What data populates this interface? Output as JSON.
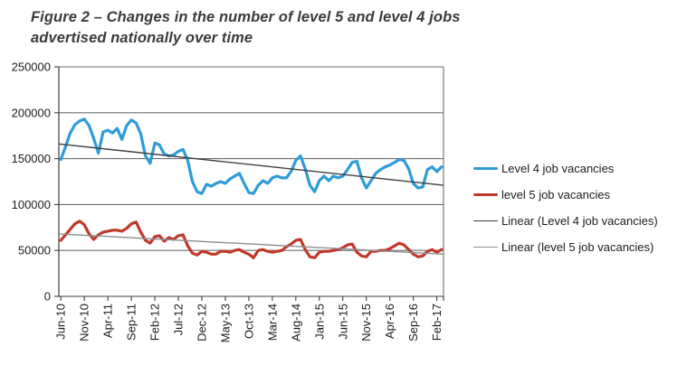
{
  "title": {
    "line1": "Figure 2 – Changes in the number of level 5 and level 4 jobs",
    "line2": "advertised nationally over time"
  },
  "colors": {
    "level4_line": "#2f9cd7",
    "level5_line": "#c0392b",
    "level4_trend": "#3f3f3f",
    "level5_trend": "#8e8e8e",
    "gridline": "#6f6f6f",
    "axis": "#3f3f3f",
    "label_text": "#1c1c1e",
    "title_text": "#3b3b3d"
  },
  "chart_data": {
    "type": "line",
    "title": "Figure 2 – Changes in the number of level 5 and level 4 jobs advertised nationally over time",
    "xlabel": "",
    "ylabel": "",
    "ylim": [
      0,
      250000
    ],
    "ytick_step": 50000,
    "ytick_labels": [
      "0",
      "50000",
      "100000",
      "150000",
      "200000",
      "250000"
    ],
    "grid": true,
    "legend_position": "right",
    "x_start": "Jun-10",
    "x_end": "Mar-17",
    "x_interval": "monthly",
    "xtick_every": 5,
    "xtick_labels": [
      "Jun-10",
      "Nov-10",
      "Apr-11",
      "Sep-11",
      "Feb-12",
      "Jul-12",
      "Dec-12",
      "May-13",
      "Oct-13",
      "Mar-14",
      "Aug-14",
      "Jan-15",
      "Jun-15",
      "Nov-15",
      "Apr-16",
      "Sep-16",
      "Feb-17"
    ],
    "series": [
      {
        "name": "Level 4 job vacancies",
        "color": "#2f9cd7",
        "stroke_width": 3.2,
        "values": [
          149000,
          163000,
          178000,
          187000,
          191000,
          193000,
          186000,
          172000,
          156000,
          179000,
          181000,
          178000,
          183000,
          171000,
          186000,
          192000,
          189000,
          177000,
          153000,
          145000,
          167000,
          165000,
          155000,
          153000,
          154000,
          158000,
          160000,
          148000,
          125000,
          114000,
          112000,
          122000,
          120000,
          123000,
          125000,
          123000,
          128000,
          131000,
          134000,
          123000,
          113000,
          112000,
          121000,
          126000,
          123000,
          129000,
          131000,
          129000,
          129000,
          136000,
          148000,
          153000,
          139000,
          121000,
          114000,
          126000,
          131000,
          126000,
          131000,
          129000,
          131000,
          138000,
          146000,
          147000,
          129000,
          118000,
          126000,
          134000,
          138000,
          141000,
          143000,
          146000,
          149000,
          148000,
          139000,
          123000,
          118000,
          119000,
          138000,
          141000,
          136000,
          141000
        ]
      },
      {
        "name": "level 5 job vacancies",
        "color": "#c0392b",
        "stroke_width": 3.2,
        "values": [
          61000,
          67000,
          73000,
          79000,
          82000,
          78000,
          68000,
          62000,
          67000,
          70000,
          71000,
          72000,
          72000,
          71000,
          74000,
          79000,
          81000,
          70000,
          61000,
          58000,
          65000,
          66000,
          60000,
          64000,
          62000,
          66000,
          67000,
          55000,
          47000,
          45000,
          49000,
          48000,
          46000,
          46000,
          49000,
          49000,
          48000,
          50000,
          51000,
          48000,
          46000,
          42000,
          50000,
          51000,
          49000,
          48000,
          49000,
          50000,
          54000,
          57000,
          61000,
          62000,
          51000,
          43000,
          42000,
          48000,
          49000,
          49000,
          50000,
          51000,
          53000,
          56000,
          57000,
          48000,
          44000,
          43000,
          49000,
          49000,
          50000,
          50000,
          52000,
          55000,
          58000,
          56000,
          51000,
          46000,
          43000,
          44000,
          49000,
          51000,
          48000,
          51000
        ]
      },
      {
        "name": "Linear (Level 4 job vacancies)",
        "color": "#3f3f3f",
        "stroke_width": 1.4,
        "trend": true,
        "trend_start": 166000,
        "trend_end": 121000
      },
      {
        "name": "Linear (level 5 job vacancies)",
        "color": "#8e8e8e",
        "stroke_width": 1.4,
        "trend": true,
        "trend_start": 68000,
        "trend_end": 46000
      }
    ]
  }
}
